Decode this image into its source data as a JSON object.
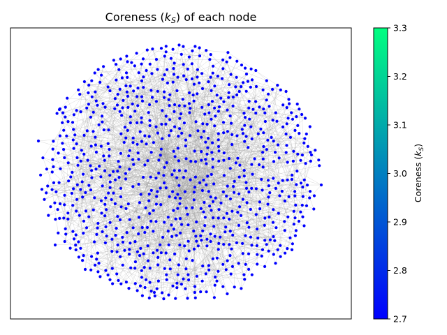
{
  "figure": {
    "title_prefix": "Coreness (",
    "title_sym": "k",
    "title_sub": "S",
    "title_suffix": ") of each node"
  },
  "colorbar": {
    "label_prefix": "Coreness (",
    "label_sym": "k",
    "label_sub": "S",
    "label_suffix": ")",
    "min": 2.7,
    "max": 3.3,
    "ticks": [
      "2.7",
      "2.8",
      "2.9",
      "3.0",
      "3.1",
      "3.2",
      "3.3"
    ],
    "color_low": "#0000ff",
    "color_high": "#00ff80"
  },
  "network": {
    "node_color": "#0000ff",
    "edge_color": "#9a9a9a",
    "node_count": 900,
    "node_coreness": 2.7
  }
}
